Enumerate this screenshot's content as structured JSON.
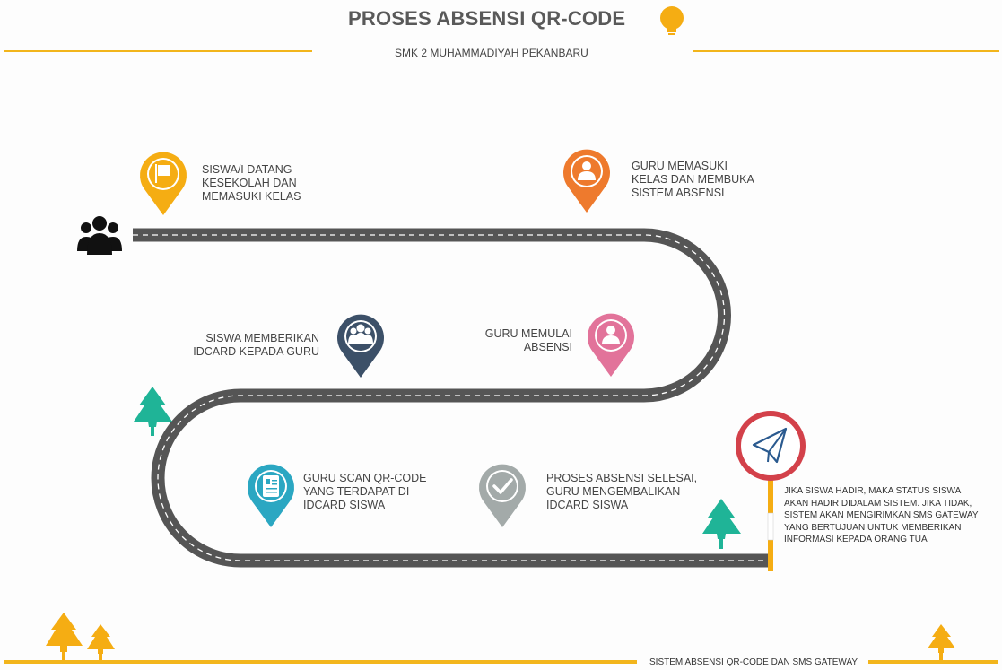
{
  "header": {
    "title": "PROSES ABSENSI QR-CODE",
    "subtitle": "SMK 2 MUHAMMADIYAH PEKANBARU"
  },
  "steps": [
    {
      "text": "SISWA/I DATANG\nKESEKOLAH DAN\nMEMASUKI KELAS",
      "icon": "flag-icon",
      "color": "#f5ad13"
    },
    {
      "text": "GURU MEMASUKI\nKELAS DAN MEMBUKA\nSISTEM ABSENSI",
      "icon": "person-icon",
      "color": "#ee7a2d"
    },
    {
      "text": "GURU MEMULAI\nABSENSI",
      "icon": "person-icon",
      "color": "#e2739a"
    },
    {
      "text": "SISWA MEMBERIKAN\nIDCARD KEPADA GURU",
      "icon": "group-icon",
      "color": "#3c5068"
    },
    {
      "text": "GURU SCAN QR-CODE\nYANG TERDAPAT DI\nIDCARD SISWA",
      "icon": "id-card-icon",
      "color": "#2ba7c2"
    },
    {
      "text": "PROSES ABSENSI SELESAI,\nGURU MENGEMBALIKAN\nIDCARD SISWA",
      "icon": "checkmark-icon",
      "color": "#a3aaa9"
    }
  ],
  "note": "JIKA SISWA HADIR, MAKA STATUS SISWA\nAKAN HADIR DIDALAM SISTEM. JIKA TIDAK,\nSISTEM AKAN MENGIRIMKAN SMS GATEWAY\nYANG BERTUJUAN UNTUK MEMBERIKAN\nINFORMASI KEPADA ORANG TUA",
  "footer": "SISTEM ABSENSI QR-CODE DAN SMS GATEWAY",
  "colors": {
    "accent": "#f2b51c",
    "road": "#555555",
    "tree_teal": "#1fb497",
    "sign_red": "#d3414a",
    "plane_blue": "#2a5a8f"
  }
}
